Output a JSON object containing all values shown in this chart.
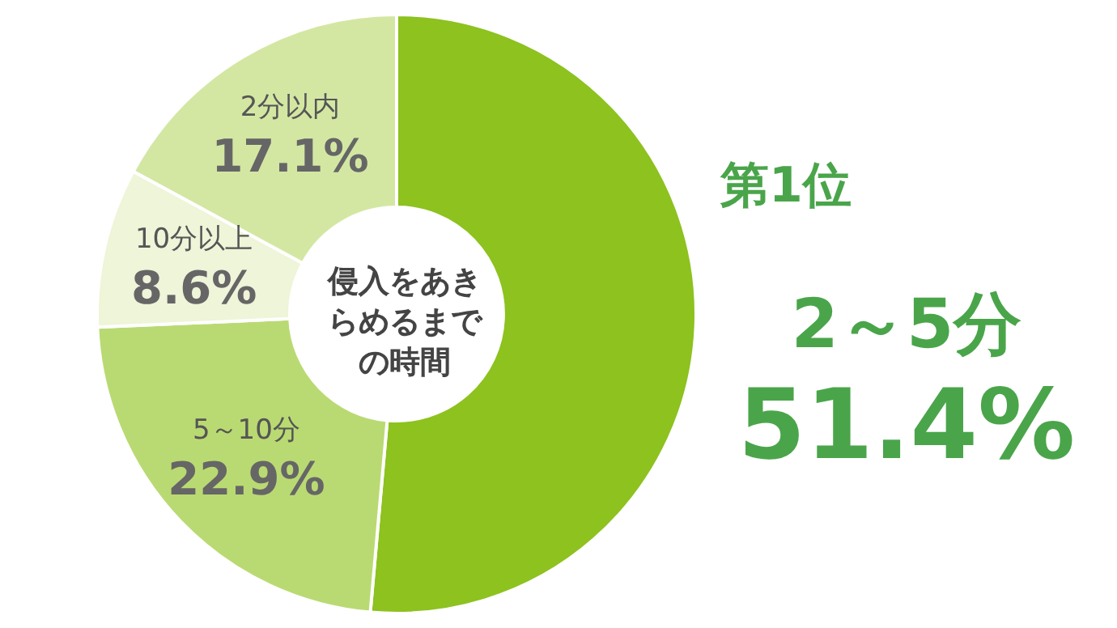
{
  "chart_data": {
    "type": "donut",
    "title": "侵入をあきらめるまでの時間",
    "categories": [
      "2～5分",
      "5～10分",
      "10分以上",
      "2分以内"
    ],
    "values": [
      51.4,
      22.9,
      8.6,
      17.1
    ],
    "colors": [
      "#8dc21f",
      "#b9da72",
      "#eef5d8",
      "#d3e7a3"
    ],
    "value_labels": [
      "51.4%",
      "22.9%",
      "8.6%",
      "17.1%"
    ],
    "annotations": [
      "第1位"
    ]
  }
}
